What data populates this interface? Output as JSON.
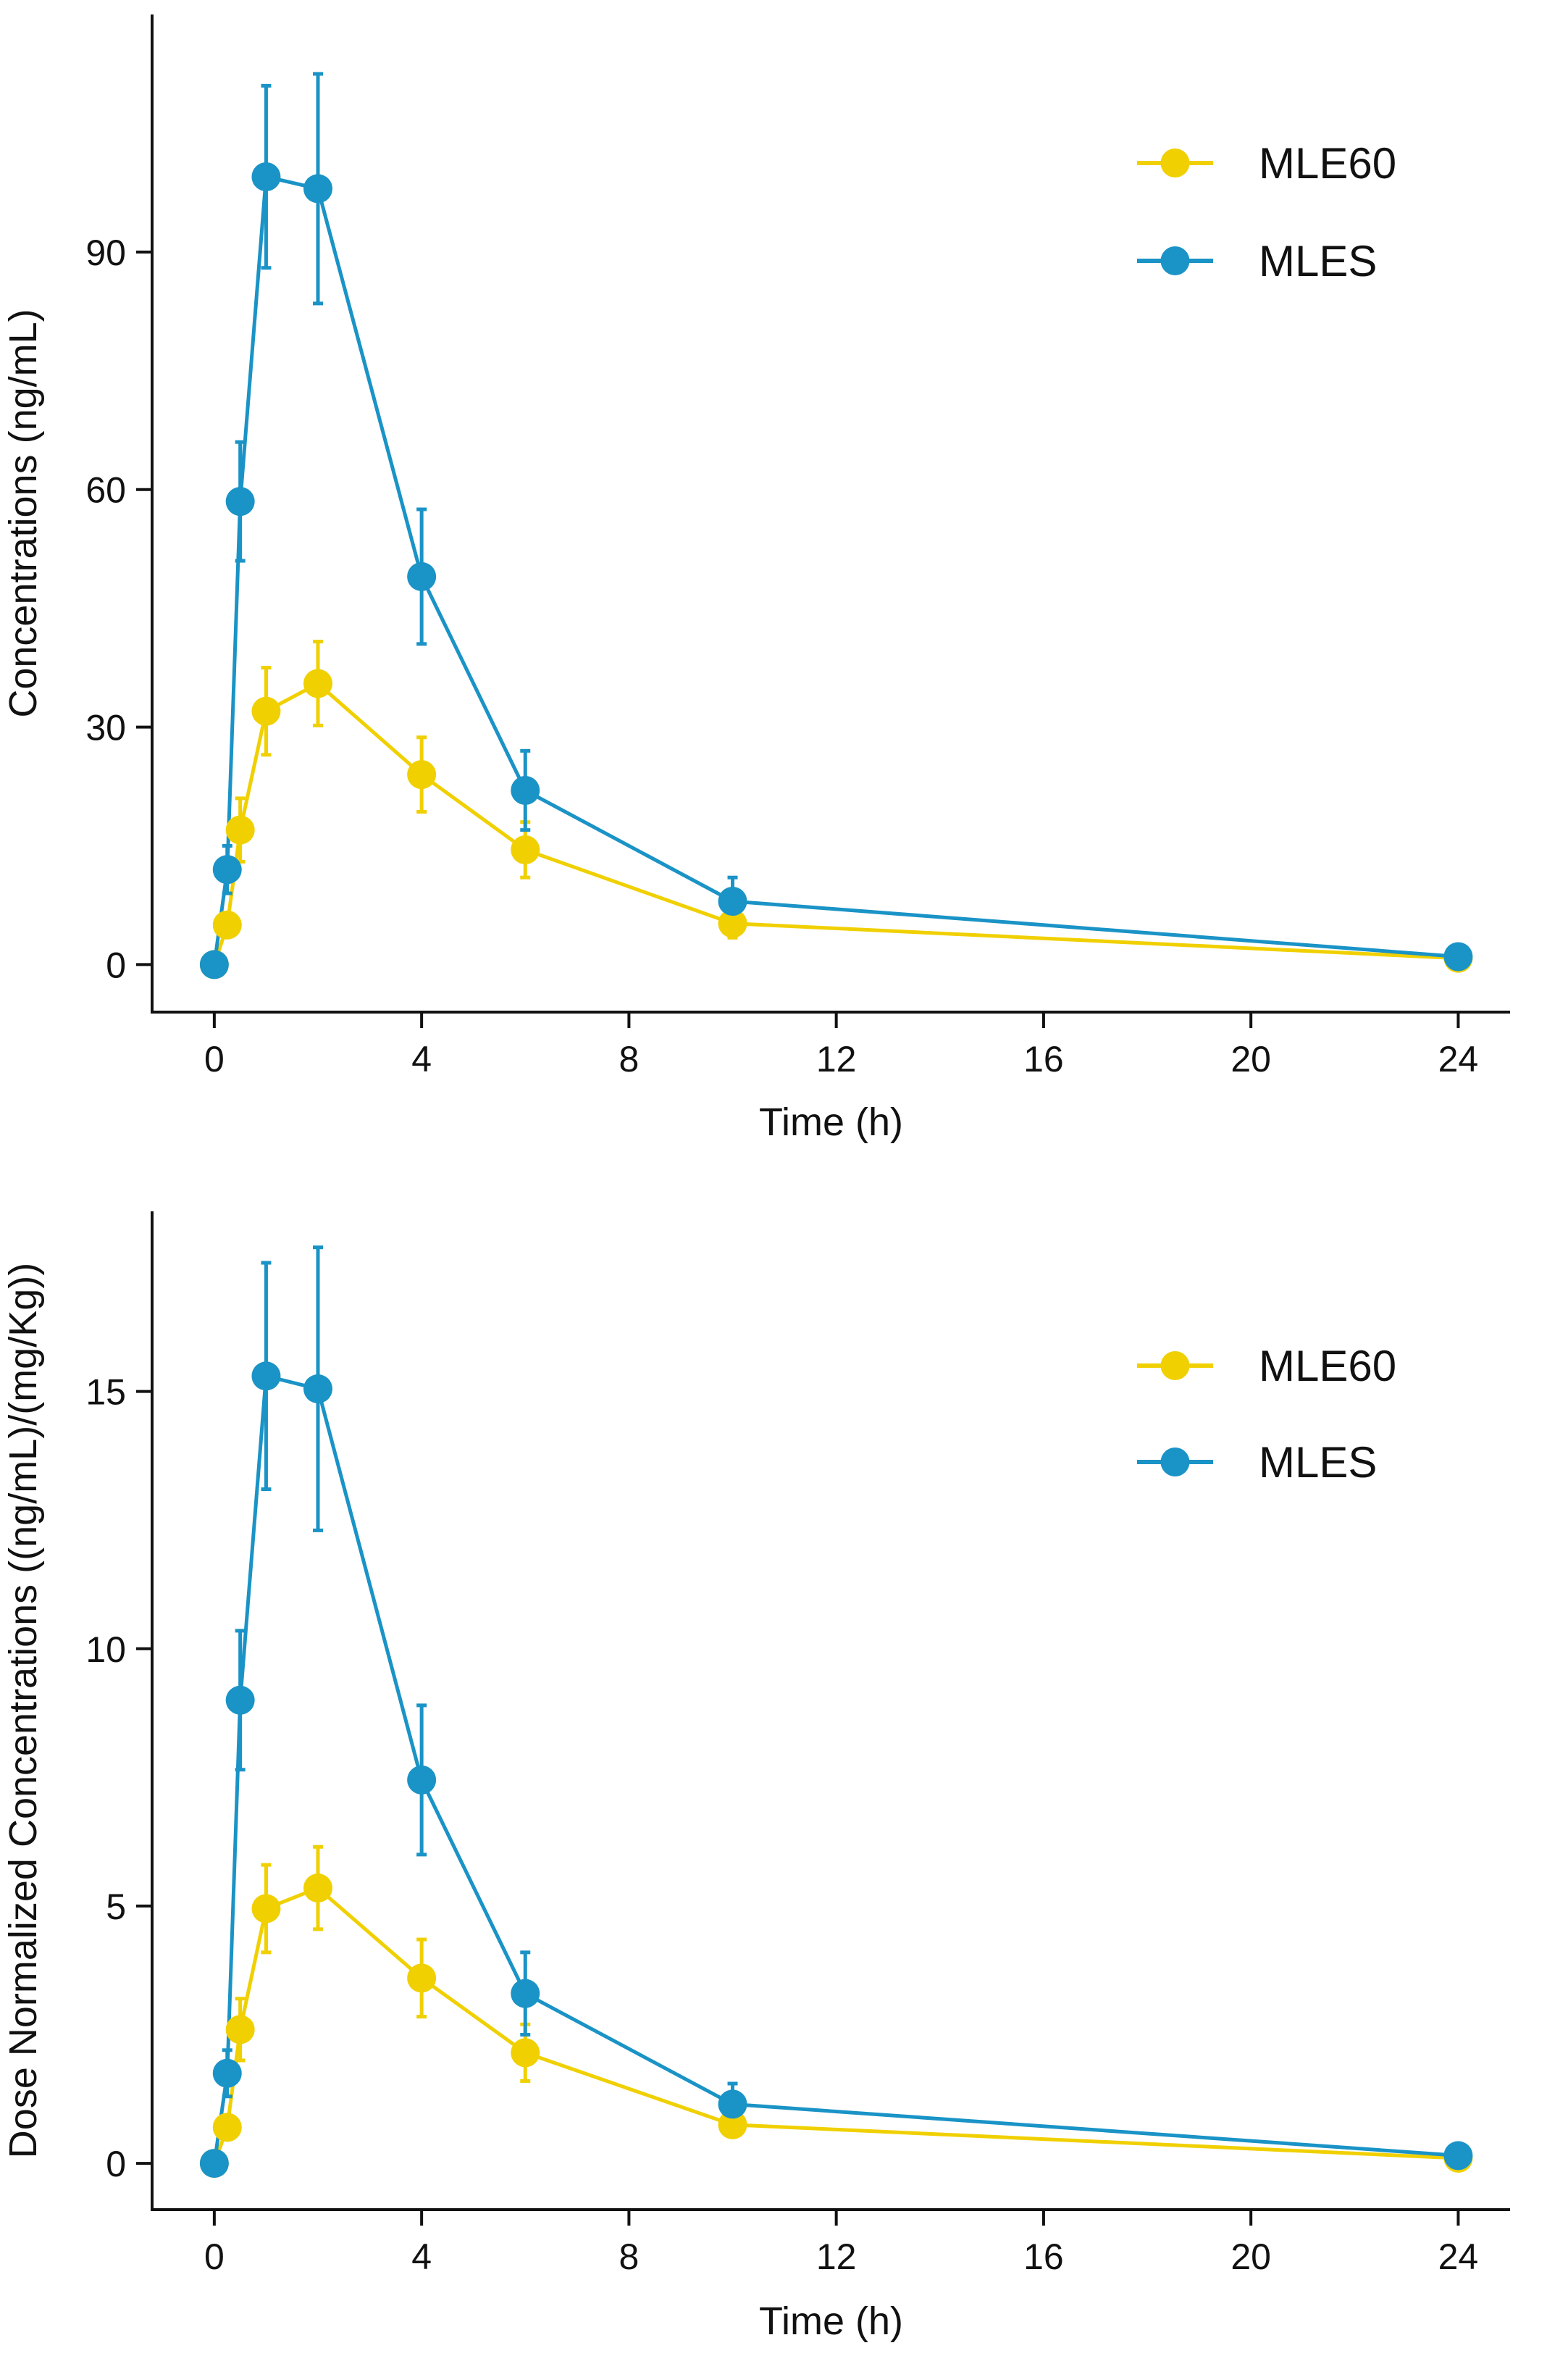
{
  "colors": {
    "MLE60": "#F0D000",
    "MLES": "#1A93C6",
    "axis": "#111111"
  },
  "chart_data": [
    {
      "type": "line",
      "title": "",
      "xlabel": "Time (h)",
      "ylabel": "Concentrations (ng/mL)",
      "x": [
        0,
        0.25,
        0.5,
        1,
        2,
        4,
        6,
        10,
        24
      ],
      "xlim": [
        -1.2,
        25
      ],
      "ylim": [
        -6,
        120
      ],
      "xticks": [
        0,
        4,
        8,
        12,
        16,
        20,
        24
      ],
      "yticks": [
        0,
        30,
        60,
        90
      ],
      "legend_position": "top-right",
      "series": [
        {
          "name": "MLE60",
          "color_key": "MLE60",
          "values": [
            0,
            5,
            17,
            32,
            35.5,
            24,
            14.5,
            5.2,
            0.8
          ],
          "error": [
            0,
            1.2,
            4,
            5.5,
            5.3,
            4.7,
            3.5,
            1.8,
            0.3
          ]
        },
        {
          "name": "MLES",
          "color_key": "MLES",
          "values": [
            0,
            12,
            58.5,
            99.5,
            98,
            49,
            22,
            8,
            1
          ],
          "error": [
            0,
            3,
            7.5,
            11.5,
            14.5,
            8.5,
            5,
            3,
            0.4
          ]
        }
      ]
    },
    {
      "type": "line",
      "title": "",
      "xlabel": "Time (h)",
      "ylabel": "Dose Normalized Concentrations ((ng/mL)/(mg/Kg))",
      "x": [
        0,
        0.25,
        0.5,
        1,
        2,
        4,
        6,
        10,
        24
      ],
      "xlim": [
        -1.2,
        25
      ],
      "ylim": [
        -0.9,
        18.5
      ],
      "xticks": [
        0,
        4,
        8,
        12,
        16,
        20,
        24
      ],
      "yticks": [
        0,
        5,
        10,
        15
      ],
      "legend_position": "top-right",
      "series": [
        {
          "name": "MLE60",
          "color_key": "MLE60",
          "values": [
            0,
            0.7,
            2.6,
            4.95,
            5.35,
            3.6,
            2.15,
            0.75,
            0.1
          ],
          "error": [
            0,
            0.2,
            0.6,
            0.85,
            0.8,
            0.75,
            0.55,
            0.2,
            0.05
          ]
        },
        {
          "name": "MLES",
          "color_key": "MLES",
          "values": [
            0,
            1.75,
            9,
            15.3,
            15.05,
            7.45,
            3.3,
            1.15,
            0.15
          ],
          "error": [
            0,
            0.45,
            1.35,
            2.2,
            2.75,
            1.45,
            0.8,
            0.4,
            0.08
          ]
        }
      ]
    }
  ]
}
